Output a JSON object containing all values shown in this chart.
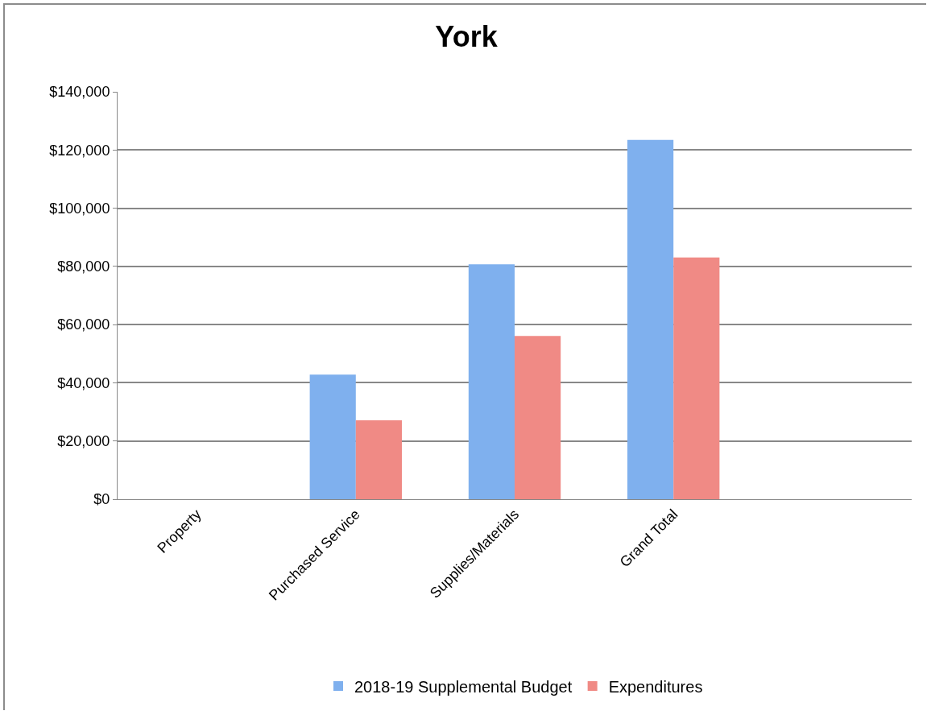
{
  "chart_data": {
    "type": "bar",
    "title": "York",
    "categories": [
      "Property",
      "Purchased Service",
      "Supplies/Materials",
      "Grand Total",
      null
    ],
    "series": [
      {
        "name": "2018-19 Supplemental Budget",
        "color": "#7fb0ee",
        "values": [
          0,
          42800,
          80700,
          123500,
          null
        ]
      },
      {
        "name": "Expenditures",
        "color": "#f08a85",
        "values": [
          0,
          27100,
          56100,
          83100,
          null
        ]
      }
    ],
    "ylim": [
      0,
      140000
    ],
    "yticks": [
      {
        "value": 0,
        "label": "$0"
      },
      {
        "value": 20000,
        "label": "$20,000"
      },
      {
        "value": 40000,
        "label": "$40,000"
      },
      {
        "value": 60000,
        "label": "$60,000"
      },
      {
        "value": 80000,
        "label": "$80,000"
      },
      {
        "value": 100000,
        "label": "$100,000"
      },
      {
        "value": 120000,
        "label": "$120,000"
      },
      {
        "value": 140000,
        "label": "$140,000"
      }
    ],
    "grid": "y",
    "legend": "bottom"
  }
}
